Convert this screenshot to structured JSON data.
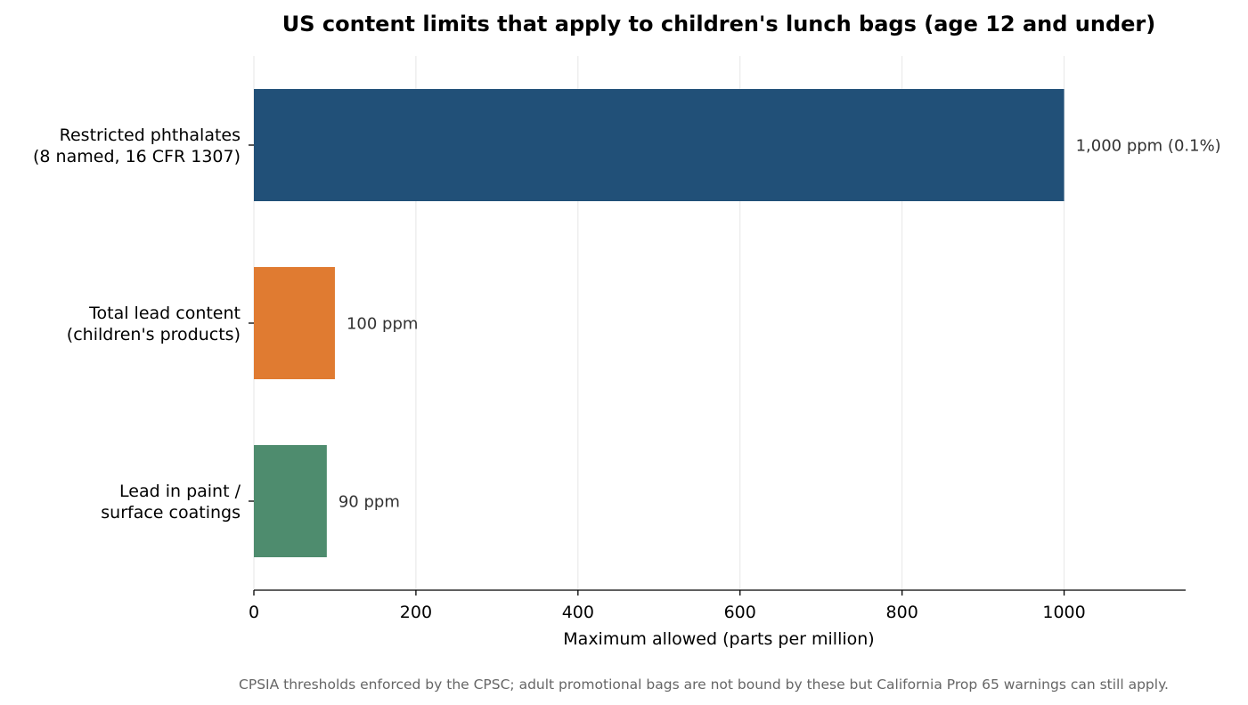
{
  "chart_data": {
    "type": "bar",
    "orientation": "horizontal",
    "title": "US content limits that apply to children's lunch bags (age 12 and under)",
    "xlabel": "Maximum allowed (parts per million)",
    "ylabel": "",
    "xlim": [
      0,
      1150
    ],
    "xticks": [
      0,
      200,
      400,
      600,
      800,
      1000
    ],
    "grid": true,
    "categories": [
      [
        "Restricted phthalates",
        "(8 named, 16 CFR 1307)"
      ],
      [
        "Total lead content",
        "(children's products)"
      ],
      [
        "Lead in paint /",
        "surface coatings"
      ]
    ],
    "values": [
      1000,
      100,
      90
    ],
    "value_labels": [
      "1,000 ppm (0.1%)",
      "100 ppm",
      "90 ppm"
    ],
    "colors": [
      "#215078",
      "#e07b31",
      "#4e8c6e"
    ],
    "footnote": "CPSIA thresholds enforced by the CPSC; adult promotional bags are not bound by these but California Prop 65 warnings can still apply."
  }
}
